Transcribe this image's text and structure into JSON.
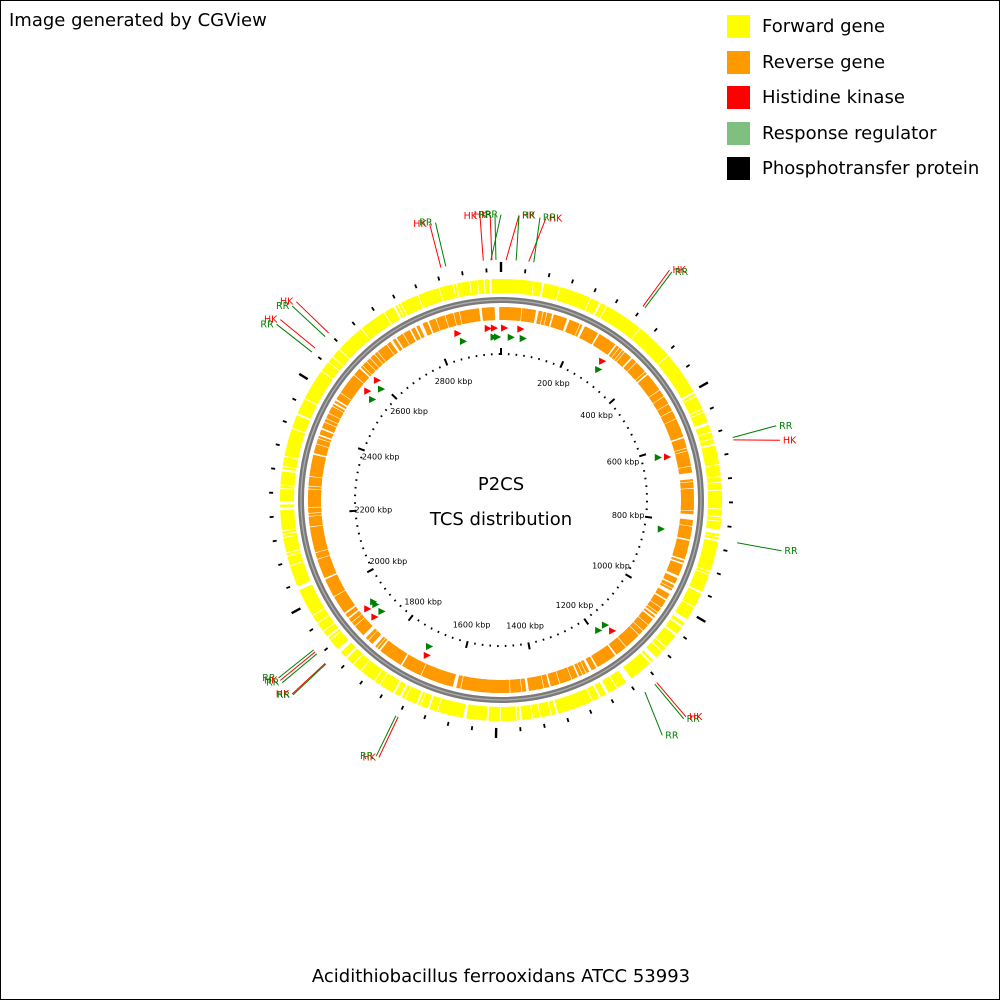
{
  "credit": "Image generated by CGView",
  "footer": "Acidithiobacillus ferrooxidans ATCC 53993",
  "center": {
    "line1": "P2CS",
    "line2": "TCS distribution"
  },
  "legend": [
    {
      "label": "Forward gene",
      "color": "#ffff00",
      "icon": "forward-gene-swatch"
    },
    {
      "label": "Reverse gene",
      "color": "#ff9900",
      "icon": "reverse-gene-swatch"
    },
    {
      "label": "Histidine kinase",
      "color": "#ff0000",
      "icon": "histidine-kinase-swatch"
    },
    {
      "label": "Response regulator",
      "color": "#7fbf7f",
      "icon": "response-regulator-swatch"
    },
    {
      "label": "Phosphotransfer protein",
      "color": "#000000",
      "icon": "phosphotransfer-protein-swatch"
    }
  ],
  "colors": {
    "hk_label": "#ff0000",
    "rr_label": "#008000",
    "rr_marker": "#008000",
    "hk_marker": "#ff0000",
    "backbone": "#808080"
  },
  "genome_length_kbp": 2980,
  "scale_labels": [
    "200 kbp",
    "400 kbp",
    "600 kbp",
    "800 kbp",
    "1000 kbp",
    "1200 kbp",
    "1400 kbp",
    "1600 kbp",
    "1800 kbp",
    "2000 kbp",
    "2200 kbp",
    "2400 kbp",
    "2600 kbp",
    "2800 kbp"
  ],
  "scale_label_values_kbp": [
    200,
    400,
    600,
    800,
    1000,
    1200,
    1400,
    1600,
    1800,
    2000,
    2200,
    2400,
    2600,
    2800
  ],
  "callouts": [
    {
      "label": "HK",
      "type": "HK",
      "pos_kbp": 2945
    },
    {
      "label": "RR",
      "type": "RR",
      "pos_kbp": 2960
    },
    {
      "label": "HK",
      "type": "HK",
      "pos_kbp": 2962
    },
    {
      "label": "RR",
      "type": "RR",
      "pos_kbp": 2970
    },
    {
      "label": "HK",
      "type": "HK",
      "pos_kbp": 10
    },
    {
      "label": "RR",
      "type": "RR",
      "pos_kbp": 30
    },
    {
      "label": "HK",
      "type": "HK",
      "pos_kbp": 55
    },
    {
      "label": "RR",
      "type": "RR",
      "pos_kbp": 65
    },
    {
      "label": "RR",
      "type": "RR",
      "pos_kbp": 2870
    },
    {
      "label": "HK",
      "type": "HK",
      "pos_kbp": 2860
    },
    {
      "label": "HK",
      "type": "HK",
      "pos_kbp": 300
    },
    {
      "label": "RR",
      "type": "RR",
      "pos_kbp": 305
    },
    {
      "label": "RR",
      "type": "RR",
      "pos_kbp": 620
    },
    {
      "label": "HK",
      "type": "HK",
      "pos_kbp": 625
    },
    {
      "label": "RR",
      "type": "RR",
      "pos_kbp": 830
    },
    {
      "label": "RR",
      "type": "RR",
      "pos_kbp": 1160
    },
    {
      "label": "HK",
      "type": "HK",
      "pos_kbp": 1155
    },
    {
      "label": "RR",
      "type": "RR",
      "pos_kbp": 1185
    },
    {
      "label": "HK",
      "type": "HK",
      "pos_kbp": 1700
    },
    {
      "label": "RR",
      "type": "RR",
      "pos_kbp": 1705
    },
    {
      "label": "RR",
      "type": "RR",
      "pos_kbp": 1915
    },
    {
      "label": "HK",
      "type": "HK",
      "pos_kbp": 1910
    },
    {
      "label": "RR",
      "type": "RR",
      "pos_kbp": 1905
    },
    {
      "label": "HK",
      "type": "HK",
      "pos_kbp": 1880
    },
    {
      "label": "RR",
      "type": "RR",
      "pos_kbp": 1878
    },
    {
      "label": "HK",
      "type": "HK",
      "pos_kbp": 2600
    },
    {
      "label": "RR",
      "type": "RR",
      "pos_kbp": 2590
    },
    {
      "label": "HK",
      "type": "HK",
      "pos_kbp": 2560
    },
    {
      "label": "RR",
      "type": "RR",
      "pos_kbp": 2550
    }
  ]
}
